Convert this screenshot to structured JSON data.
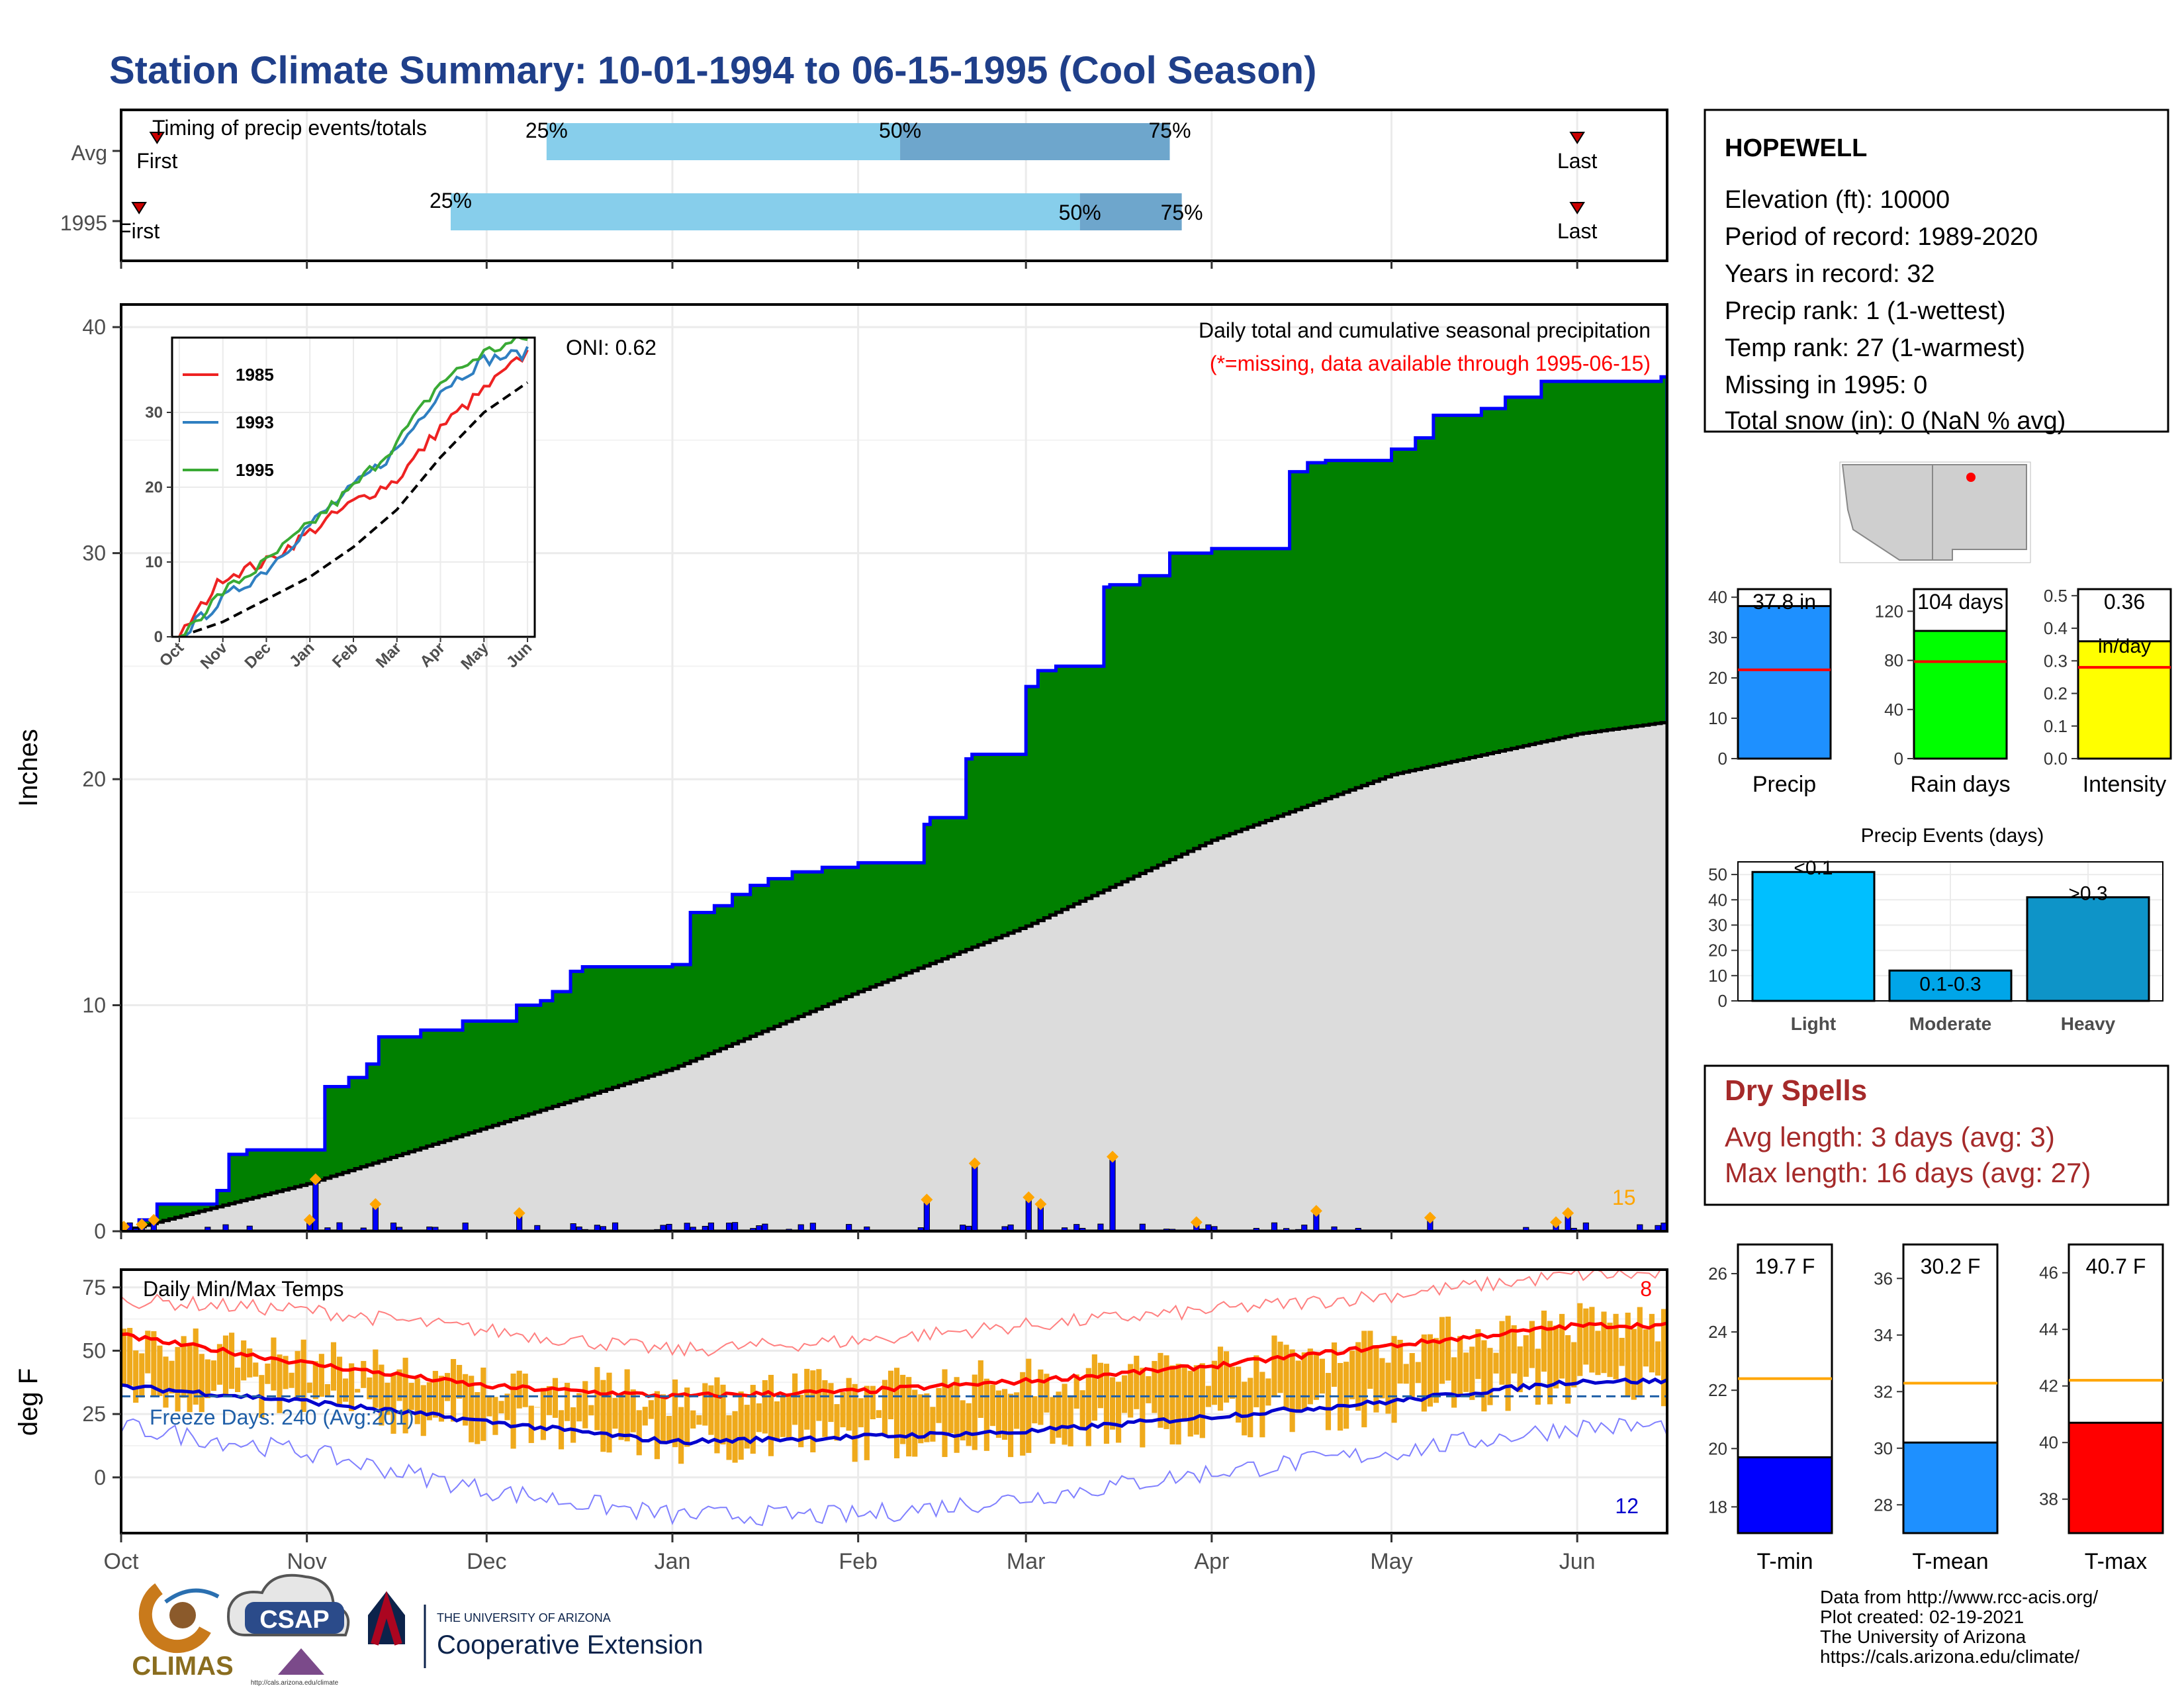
{
  "title": "Station Climate Summary: 10-01-1994 to 06-15-1995 (Cool Season)",
  "colors": {
    "title": "#1f3f8a",
    "bar_light": "#87ceeb",
    "bar_dark": "#6ea6cc",
    "cum_area": "#008000",
    "avg_area": "#dcdcdc",
    "outline": "#0000ff",
    "dry_spells": "#a52a2a",
    "tmax": "#ff0000",
    "tmin": "#0000cd",
    "range": "#efaa1c"
  },
  "timing": {
    "panel_label": "Timing of precip events/totals",
    "rows": [
      {
        "label": "Avg",
        "first": "1994-10-07",
        "p25": "1994-12-11",
        "p50": "1995-02-08",
        "p75": "1995-03-25",
        "last": "1995-06-01",
        "first_label": "First",
        "last_label": "Last",
        "p25_label": "25%",
        "p50_label": "50%",
        "p75_label": "75%"
      },
      {
        "label": "1995",
        "first": "1994-10-04",
        "p25": "1994-11-25",
        "p50": "1995-03-10",
        "p75": "1995-03-27",
        "last": "1995-06-01",
        "first_label": "First",
        "last_label": "Last",
        "p25_label": "25%",
        "p50_label": "50%",
        "p75_label": "75%"
      }
    ]
  },
  "precip_panel": {
    "subtitle1": "Daily total and cumulative seasonal precipitation",
    "subtitle2": "(*=missing, data available through 1995-06-15)",
    "oni": "ONI: 0.62",
    "ylabel": "Inches",
    "yticks": [
      "0",
      "10",
      "20",
      "30",
      "40"
    ],
    "corner_count": "15"
  },
  "inset": {
    "xticks": [
      "Oct",
      "Nov",
      "Dec",
      "Jan",
      "Feb",
      "Mar",
      "Apr",
      "May",
      "Jun"
    ],
    "yticks": [
      "0",
      "10",
      "20",
      "30"
    ],
    "legend": [
      "1985",
      "1993",
      "1995"
    ]
  },
  "temp_panel": {
    "label": "Daily Min/Max Temps",
    "ylabel": "deg F",
    "yticks": [
      "0",
      "25",
      "50",
      "75"
    ],
    "freeze": "Freeze Days: 240 (Avg:201)",
    "count_max": "8",
    "count_min": "12"
  },
  "xaxis": [
    "Oct",
    "Nov",
    "Dec",
    "Jan",
    "Feb",
    "Mar",
    "Apr",
    "May",
    "Jun"
  ],
  "station": {
    "name": "HOPEWELL",
    "lines": [
      "Elevation (ft): 10000",
      "Period of record: 1989-2020",
      "Years in record: 32",
      "Precip rank: 1 (1-wettest)",
      "Temp rank: 27 (1-warmest)",
      "Missing in 1995: 0",
      "Total snow (in): 0 (NaN % avg)"
    ]
  },
  "summary_bars": [
    {
      "label": "Precip",
      "value_label": "37.8 in",
      "yticks": [
        "0",
        "10",
        "20",
        "30",
        "40"
      ]
    },
    {
      "label": "Rain days",
      "value_label": "104 days",
      "yticks": [
        "0",
        "40",
        "80",
        "120"
      ]
    },
    {
      "label": "Intensity",
      "value_label": "0.36",
      "unit": "in/day",
      "yticks": [
        "0.0",
        "0.1",
        "0.2",
        "0.3",
        "0.4",
        "0.5"
      ]
    }
  ],
  "events": {
    "title": "Precip Events (days)",
    "yticks": [
      "0",
      "10",
      "20",
      "30",
      "40",
      "50"
    ],
    "bars": [
      {
        "cat": "Light",
        "label": "<0.1"
      },
      {
        "cat": "Moderate",
        "label": "0.1-0.3"
      },
      {
        "cat": "Heavy",
        "label": ">0.3"
      }
    ]
  },
  "dry": {
    "title": "Dry Spells",
    "line1": "Avg length: 3 days (avg: 3)",
    "line2": "Max length: 16 days (avg: 27)"
  },
  "temp_bars": [
    {
      "label": "T-min",
      "value_label": "19.7 F",
      "yticks": [
        "18",
        "20",
        "22",
        "24",
        "26"
      ]
    },
    {
      "label": "T-mean",
      "value_label": "30.2 F",
      "yticks": [
        "28",
        "30",
        "32",
        "34",
        "36"
      ]
    },
    {
      "label": "T-max",
      "value_label": "40.7 F",
      "yticks": [
        "38",
        "40",
        "42",
        "44",
        "46"
      ]
    }
  ],
  "footer": [
    "Data from http://www.rcc-acis.org/",
    "Plot created: 02-19-2021",
    "The University of Arizona",
    "https://cals.arizona.edu/climate/"
  ],
  "logos": {
    "climas": "CLIMAS",
    "csap": "CSAP",
    "csap_url": "http://cals.arizona.edu/climate",
    "ua_small": "THE UNIVERSITY OF ARIZONA",
    "ua_big": "Cooperative Extension"
  },
  "chart_data": [
    {
      "type": "area",
      "title": "Daily total and cumulative seasonal precipitation",
      "ylabel": "Inches",
      "ylim": [
        0,
        41
      ],
      "x_dates": [
        "1994-10-01",
        "1994-10-04",
        "1994-10-07",
        "1994-10-15",
        "1994-10-17",
        "1994-10-19",
        "1994-10-22",
        "1994-11-01",
        "1994-11-04",
        "1994-11-08",
        "1994-11-11",
        "1994-11-13",
        "1994-11-20",
        "1994-11-27",
        "1994-12-06",
        "1994-12-10",
        "1994-12-12",
        "1994-12-15",
        "1994-12-17",
        "1995-01-01",
        "1995-01-04",
        "1995-01-08",
        "1995-01-11",
        "1995-01-14",
        "1995-01-17",
        "1995-01-21",
        "1995-01-26",
        "1995-02-01",
        "1995-02-12",
        "1995-02-13",
        "1995-02-19",
        "1995-02-20",
        "1995-03-01",
        "1995-03-03",
        "1995-03-06",
        "1995-03-14",
        "1995-03-15",
        "1995-03-20",
        "1995-03-25",
        "1995-04-01",
        "1995-04-14",
        "1995-04-17",
        "1995-04-20",
        "1995-05-01",
        "1995-05-05",
        "1995-05-08",
        "1995-05-16",
        "1995-05-20",
        "1995-05-26",
        "1995-06-15"
      ],
      "series": [
        {
          "name": "1995",
          "values": [
            0.1,
            0.5,
            1.2,
            1.2,
            1.8,
            3.4,
            3.6,
            3.6,
            6.4,
            6.8,
            7.4,
            8.6,
            8.9,
            9.3,
            10.0,
            10.2,
            10.6,
            11.5,
            11.7,
            11.8,
            14.1,
            14.4,
            14.9,
            15.3,
            15.6,
            15.9,
            16.1,
            16.3,
            18.0,
            18.3,
            20.9,
            21.1,
            24.1,
            24.8,
            25.0,
            28.5,
            28.6,
            29.0,
            30.0,
            30.2,
            33.6,
            34.0,
            34.1,
            34.6,
            35.1,
            36.1,
            36.4,
            36.9,
            37.6,
            37.8
          ]
        }
      ],
      "average_cumulative": {
        "x_dates": [
          "1994-10-01",
          "1994-11-01",
          "1994-12-01",
          "1995-01-01",
          "1995-02-01",
          "1995-03-01",
          "1995-04-01",
          "1995-05-01",
          "1995-06-01",
          "1995-06-15"
        ],
        "values": [
          0.0,
          2.1,
          4.6,
          7.2,
          10.6,
          13.5,
          17.3,
          20.2,
          22.0,
          22.5
        ]
      },
      "daily_markers": {
        "x_dates": [
          "1994-10-01",
          "1994-10-04",
          "1994-10-06",
          "1994-11-01",
          "1994-11-02",
          "1994-11-12",
          "1994-12-06",
          "1995-02-12",
          "1995-02-20",
          "1995-03-01",
          "1995-03-03",
          "1995-03-15",
          "1995-03-29",
          "1995-04-18",
          "1995-05-07",
          "1995-05-28",
          "1995-05-30"
        ],
        "values": [
          0.2,
          0.3,
          0.5,
          0.5,
          2.3,
          1.2,
          0.8,
          1.4,
          3.0,
          1.5,
          1.2,
          3.3,
          0.4,
          0.9,
          0.6,
          0.4,
          0.8
        ]
      }
    },
    {
      "type": "line",
      "title": "",
      "xlabel": "",
      "ylim": [
        0,
        40
      ],
      "categories": [
        "Oct",
        "Nov",
        "Dec",
        "Jan",
        "Feb",
        "Mar",
        "Apr",
        "May",
        "Jun"
      ],
      "series": [
        {
          "name": "1985",
          "values": [
            0,
            8,
            10,
            14,
            18,
            21,
            28,
            33,
            38
          ]
        },
        {
          "name": "1993",
          "values": [
            0,
            5,
            9,
            15,
            20,
            25,
            33,
            37,
            38
          ]
        },
        {
          "name": "1995",
          "values": [
            0,
            6,
            10,
            15,
            20,
            26,
            34,
            38,
            40
          ]
        }
      ],
      "average": [
        0,
        2,
        5,
        8,
        12,
        17,
        24,
        30,
        34
      ]
    },
    {
      "type": "line",
      "title": "Daily Min/Max Temps",
      "ylabel": "deg F",
      "ylim": [
        -22,
        82
      ],
      "categories": [
        "Oct",
        "Nov",
        "Dec",
        "Jan",
        "Feb",
        "Mar",
        "Apr",
        "May",
        "Jun"
      ],
      "series": [
        {
          "name": "Avg max",
          "values": [
            56,
            45,
            36,
            32,
            34,
            38,
            44,
            52,
            60
          ]
        },
        {
          "name": "Avg min",
          "values": [
            36,
            30,
            22,
            14,
            16,
            18,
            24,
            30,
            38
          ]
        },
        {
          "name": "Record max",
          "values": [
            70,
            66,
            58,
            50,
            54,
            60,
            66,
            72,
            80
          ]
        },
        {
          "name": "Record min",
          "values": [
            20,
            10,
            -5,
            -15,
            -15,
            -8,
            2,
            10,
            20
          ]
        }
      ]
    },
    {
      "type": "bar",
      "categories": [
        "Precip",
        "Rain days",
        "Intensity"
      ],
      "values": [
        37.8,
        104,
        0.36
      ],
      "averages": [
        22.0,
        79,
        0.28
      ]
    },
    {
      "type": "bar",
      "title": "Precip Events (days)",
      "categories": [
        "Light",
        "Moderate",
        "Heavy"
      ],
      "values": [
        51,
        12,
        41
      ],
      "ylim": [
        0,
        55
      ]
    },
    {
      "type": "bar",
      "categories": [
        "T-min",
        "T-mean",
        "T-max"
      ],
      "values": [
        19.7,
        30.2,
        40.7
      ],
      "averages": [
        22.4,
        32.3,
        42.2
      ]
    }
  ]
}
